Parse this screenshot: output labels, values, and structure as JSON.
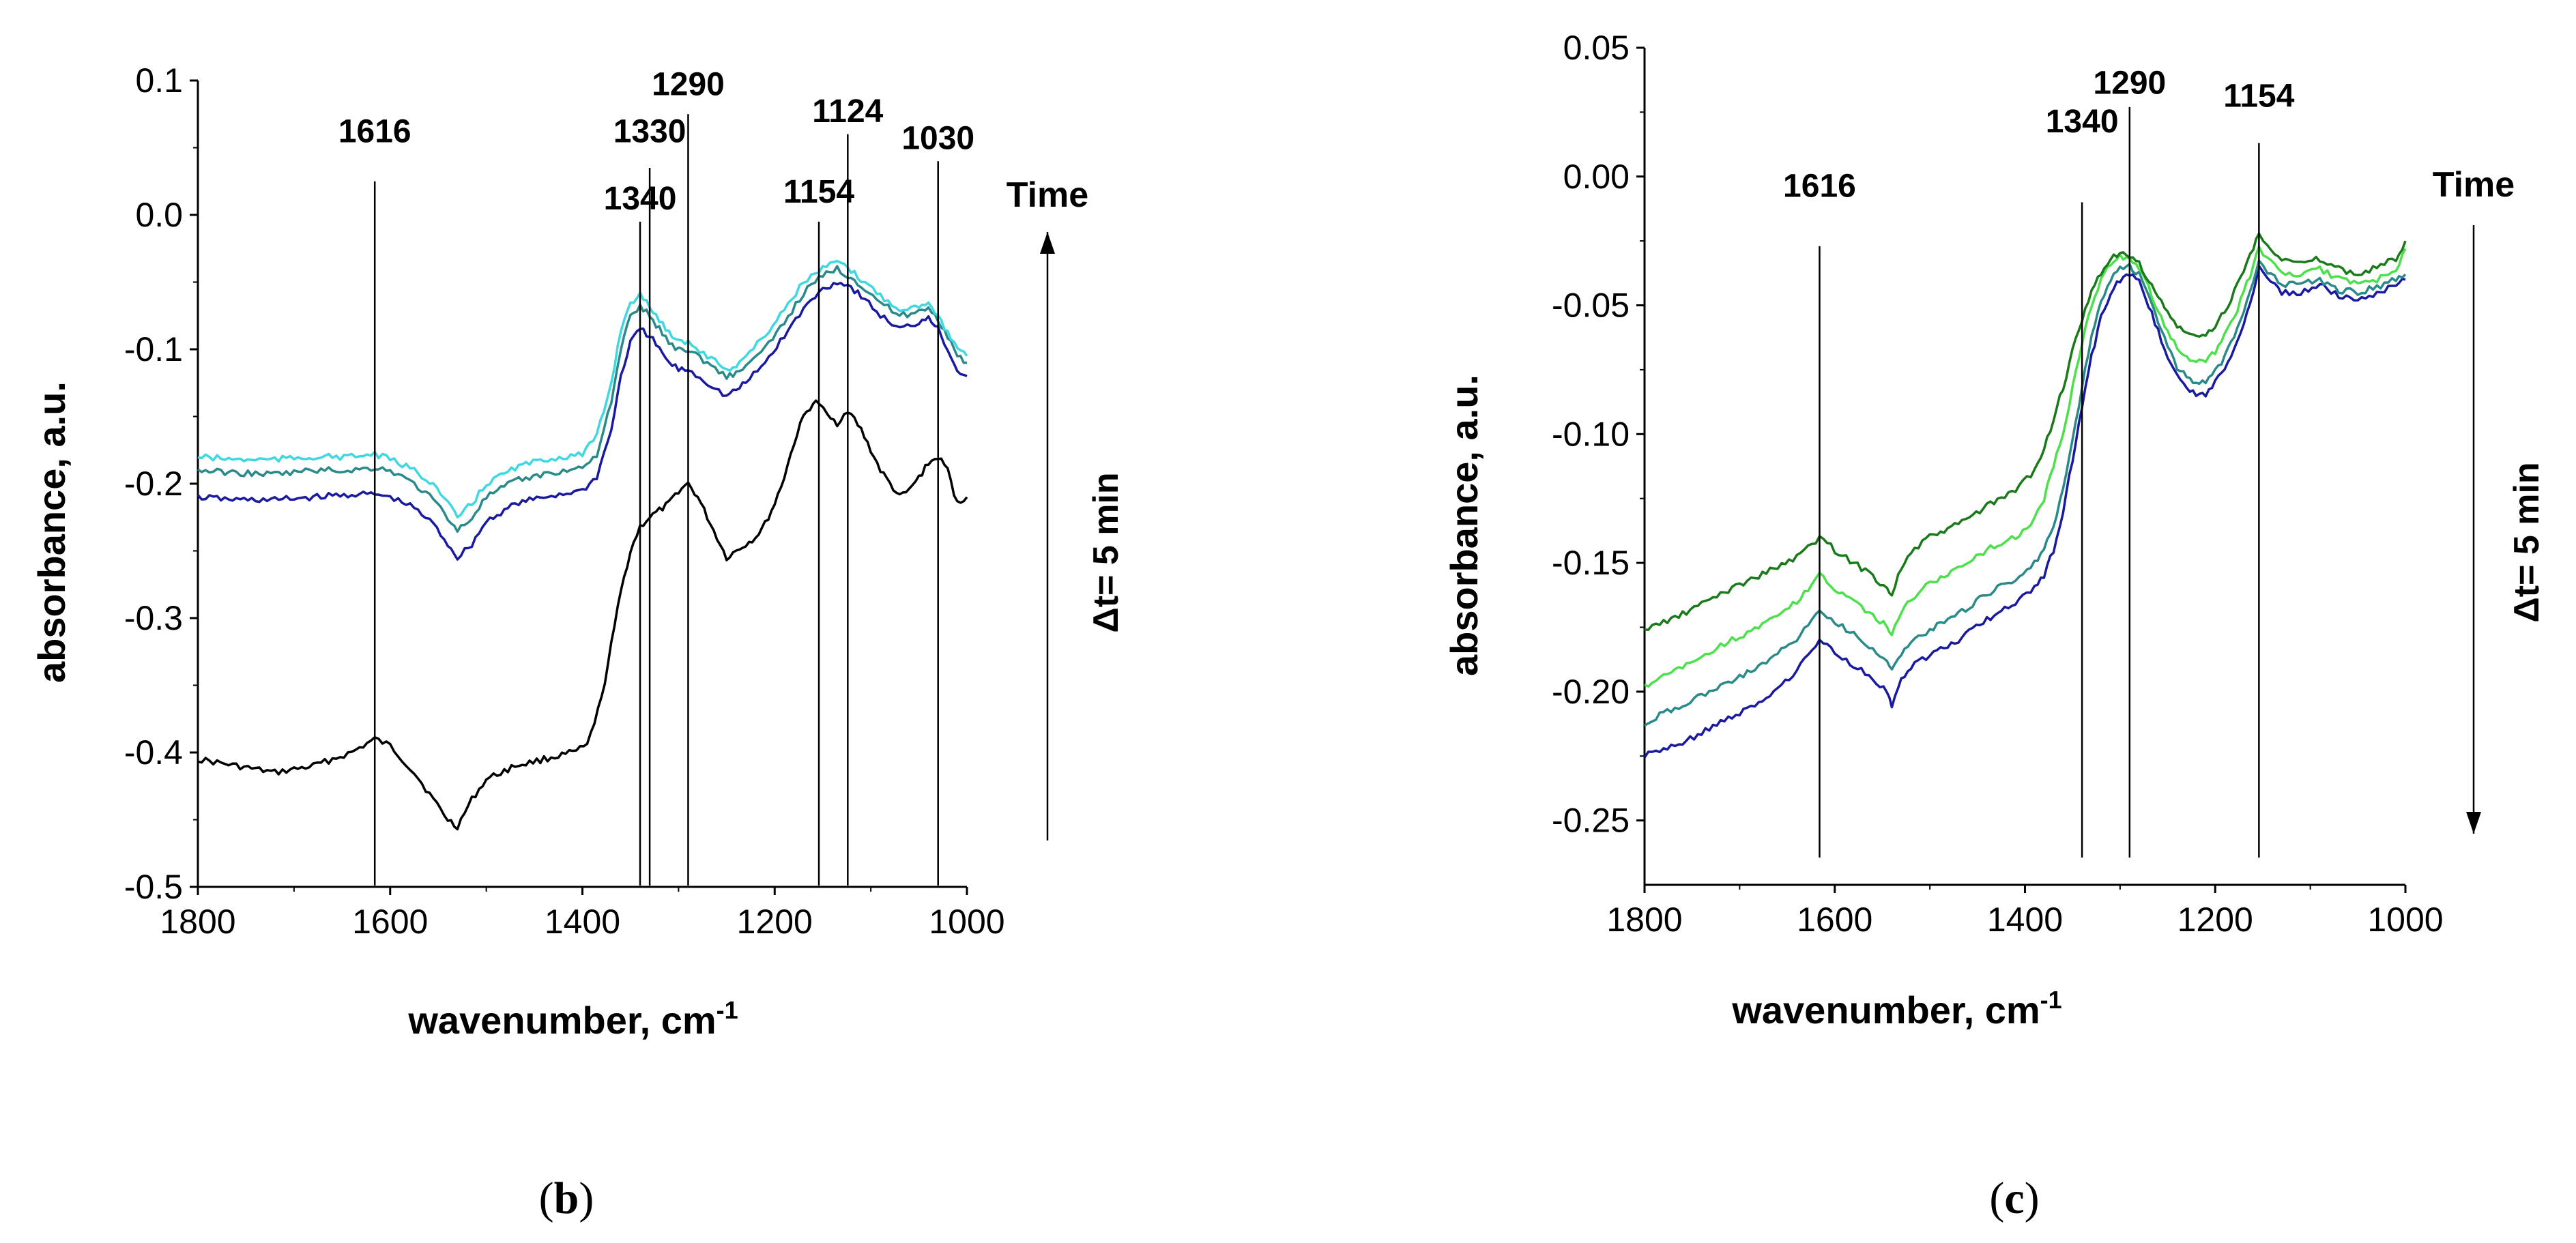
{
  "chart_data": [
    {
      "id": "b",
      "type": "line",
      "panel_label": "b",
      "xlabel": "wavenumber, cm",
      "xlabel_sup": "-1",
      "ylabel": "absorbance, a.u.",
      "xlim": [
        1800,
        1000
      ],
      "ylim": [
        -0.5,
        0.1
      ],
      "x_ticks": [
        1800,
        1600,
        1400,
        1200,
        1000
      ],
      "y_ticks": [
        0.1,
        0.0,
        -0.1,
        -0.2,
        -0.3,
        -0.4,
        -0.5
      ],
      "y_tick_labels": [
        "0.1",
        "0.0",
        "-0.1",
        "-0.2",
        "-0.3",
        "-0.4",
        "-0.5"
      ],
      "peak_lines": [
        {
          "x": 1616,
          "label": "1616",
          "y_top": 0.025,
          "label_y": 0.05
        },
        {
          "x": 1340,
          "label": "1340",
          "y_top": -0.005,
          "label_y": 0.0
        },
        {
          "x": 1330,
          "label": "1330",
          "y_top": 0.035,
          "label_y": 0.05
        },
        {
          "x": 1290,
          "label": "1290",
          "y_top": 0.075,
          "label_y": 0.085
        },
        {
          "x": 1154,
          "label": "1154",
          "y_top": -0.005,
          "label_y": 0.005
        },
        {
          "x": 1124,
          "label": "1124",
          "y_top": 0.06,
          "label_y": 0.065
        },
        {
          "x": 1030,
          "label": "1030",
          "y_top": 0.04,
          "label_y": 0.045
        }
      ],
      "arrow": {
        "label": "Time",
        "delta_label": "Δt= 5 min",
        "direction": "up"
      },
      "series": [
        {
          "name": "spectrum 1",
          "color": "#000000",
          "x": [
            1800,
            1760,
            1720,
            1680,
            1640,
            1616,
            1600,
            1575,
            1555,
            1540,
            1530,
            1515,
            1500,
            1470,
            1440,
            1410,
            1395,
            1380,
            1370,
            1360,
            1350,
            1340,
            1330,
            1320,
            1310,
            1300,
            1290,
            1280,
            1270,
            1260,
            1250,
            1240,
            1230,
            1220,
            1210,
            1200,
            1190,
            1180,
            1170,
            1160,
            1154,
            1145,
            1135,
            1124,
            1110,
            1100,
            1090,
            1080,
            1070,
            1060,
            1050,
            1040,
            1030,
            1020,
            1010,
            1000
          ],
          "y": [
            -0.405,
            -0.41,
            -0.415,
            -0.41,
            -0.4,
            -0.39,
            -0.395,
            -0.415,
            -0.435,
            -0.45,
            -0.455,
            -0.435,
            -0.42,
            -0.41,
            -0.405,
            -0.4,
            -0.395,
            -0.36,
            -0.32,
            -0.28,
            -0.25,
            -0.232,
            -0.225,
            -0.22,
            -0.215,
            -0.205,
            -0.2,
            -0.21,
            -0.225,
            -0.24,
            -0.255,
            -0.25,
            -0.245,
            -0.24,
            -0.23,
            -0.215,
            -0.195,
            -0.17,
            -0.15,
            -0.14,
            -0.14,
            -0.15,
            -0.155,
            -0.145,
            -0.16,
            -0.175,
            -0.19,
            -0.2,
            -0.21,
            -0.205,
            -0.195,
            -0.185,
            -0.18,
            -0.19,
            -0.215,
            -0.21
          ]
        },
        {
          "name": "spectrum 2",
          "color": "#1a1aa0",
          "x": [
            1800,
            1760,
            1720,
            1680,
            1640,
            1616,
            1600,
            1575,
            1555,
            1540,
            1530,
            1515,
            1500,
            1470,
            1440,
            1400,
            1385,
            1370,
            1360,
            1350,
            1340,
            1330,
            1320,
            1310,
            1300,
            1290,
            1270,
            1250,
            1240,
            1230,
            1210,
            1190,
            1170,
            1150,
            1135,
            1124,
            1110,
            1090,
            1070,
            1050,
            1040,
            1030,
            1020,
            1010,
            1000
          ],
          "y": [
            -0.21,
            -0.212,
            -0.212,
            -0.21,
            -0.208,
            -0.208,
            -0.21,
            -0.218,
            -0.23,
            -0.245,
            -0.255,
            -0.245,
            -0.228,
            -0.215,
            -0.21,
            -0.205,
            -0.195,
            -0.16,
            -0.12,
            -0.095,
            -0.085,
            -0.09,
            -0.1,
            -0.11,
            -0.115,
            -0.115,
            -0.125,
            -0.135,
            -0.13,
            -0.125,
            -0.11,
            -0.09,
            -0.07,
            -0.055,
            -0.05,
            -0.052,
            -0.06,
            -0.075,
            -0.085,
            -0.08,
            -0.075,
            -0.085,
            -0.1,
            -0.115,
            -0.12
          ]
        },
        {
          "name": "spectrum 3",
          "color": "#2a8a8a",
          "x": [
            1800,
            1760,
            1720,
            1680,
            1640,
            1616,
            1600,
            1575,
            1555,
            1540,
            1530,
            1515,
            1500,
            1470,
            1440,
            1400,
            1385,
            1370,
            1360,
            1350,
            1340,
            1330,
            1320,
            1310,
            1300,
            1290,
            1270,
            1250,
            1240,
            1230,
            1210,
            1190,
            1170,
            1150,
            1135,
            1124,
            1110,
            1090,
            1070,
            1050,
            1040,
            1030,
            1020,
            1010,
            1000
          ],
          "y": [
            -0.19,
            -0.192,
            -0.193,
            -0.19,
            -0.19,
            -0.188,
            -0.19,
            -0.2,
            -0.212,
            -0.225,
            -0.235,
            -0.225,
            -0.21,
            -0.198,
            -0.193,
            -0.188,
            -0.178,
            -0.14,
            -0.1,
            -0.075,
            -0.068,
            -0.075,
            -0.085,
            -0.095,
            -0.1,
            -0.1,
            -0.11,
            -0.12,
            -0.118,
            -0.112,
            -0.1,
            -0.08,
            -0.058,
            -0.045,
            -0.04,
            -0.045,
            -0.052,
            -0.065,
            -0.075,
            -0.072,
            -0.068,
            -0.078,
            -0.09,
            -0.105,
            -0.11
          ]
        },
        {
          "name": "spectrum 4",
          "color": "#3fd8e0",
          "x": [
            1800,
            1760,
            1720,
            1680,
            1640,
            1616,
            1600,
            1575,
            1555,
            1540,
            1530,
            1515,
            1500,
            1470,
            1440,
            1400,
            1385,
            1370,
            1360,
            1350,
            1340,
            1330,
            1320,
            1310,
            1300,
            1290,
            1270,
            1250,
            1240,
            1230,
            1210,
            1190,
            1170,
            1150,
            1135,
            1124,
            1110,
            1090,
            1070,
            1050,
            1040,
            1030,
            1020,
            1010,
            1000
          ],
          "y": [
            -0.18,
            -0.182,
            -0.182,
            -0.18,
            -0.18,
            -0.178,
            -0.182,
            -0.19,
            -0.2,
            -0.215,
            -0.225,
            -0.215,
            -0.2,
            -0.188,
            -0.182,
            -0.178,
            -0.165,
            -0.125,
            -0.085,
            -0.065,
            -0.06,
            -0.068,
            -0.078,
            -0.088,
            -0.092,
            -0.095,
            -0.105,
            -0.115,
            -0.112,
            -0.105,
            -0.09,
            -0.07,
            -0.05,
            -0.04,
            -0.035,
            -0.04,
            -0.048,
            -0.06,
            -0.07,
            -0.068,
            -0.064,
            -0.075,
            -0.088,
            -0.1,
            -0.105
          ]
        }
      ]
    },
    {
      "id": "c",
      "type": "line",
      "panel_label": "c",
      "xlabel": "wavenumber, cm",
      "xlabel_sup": "-1",
      "ylabel": "absorbance, a.u.",
      "xlim": [
        1800,
        1000
      ],
      "ylim": [
        -0.275,
        0.05
      ],
      "x_ticks": [
        1800,
        1600,
        1400,
        1200,
        1000
      ],
      "y_ticks": [
        0.05,
        0.0,
        -0.05,
        -0.1,
        -0.15,
        -0.2,
        -0.25
      ],
      "y_tick_labels": [
        "0.05",
        "0.00",
        "-0.05",
        "-0.10",
        "-0.15",
        "-0.20",
        "-0.25"
      ],
      "peak_lines": [
        {
          "x": 1616,
          "label": "1616",
          "y_top": -0.027,
          "label_y": -0.01
        },
        {
          "x": 1340,
          "label": "1340",
          "y_top": -0.01,
          "label_y": 0.015
        },
        {
          "x": 1290,
          "label": "1290",
          "y_top": 0.027,
          "label_y": 0.03
        },
        {
          "x": 1154,
          "label": "1154",
          "y_top": 0.013,
          "label_y": 0.025
        }
      ],
      "arrow": {
        "label": "Time",
        "delta_label": "Δt= 5 min",
        "direction": "down"
      },
      "series": [
        {
          "name": "spectrum 1",
          "color": "#1a1aa0",
          "x": [
            1800,
            1760,
            1720,
            1680,
            1640,
            1616,
            1600,
            1580,
            1560,
            1545,
            1540,
            1530,
            1520,
            1500,
            1470,
            1440,
            1410,
            1390,
            1380,
            1370,
            1360,
            1350,
            1340,
            1330,
            1320,
            1310,
            1300,
            1290,
            1280,
            1270,
            1260,
            1250,
            1240,
            1230,
            1220,
            1210,
            1200,
            1190,
            1180,
            1170,
            1160,
            1154,
            1145,
            1130,
            1110,
            1090,
            1070,
            1050,
            1030,
            1010,
            1000
          ],
          "y": [
            -0.225,
            -0.22,
            -0.212,
            -0.205,
            -0.192,
            -0.18,
            -0.185,
            -0.19,
            -0.195,
            -0.2,
            -0.205,
            -0.195,
            -0.19,
            -0.186,
            -0.18,
            -0.172,
            -0.165,
            -0.16,
            -0.155,
            -0.145,
            -0.13,
            -0.11,
            -0.09,
            -0.07,
            -0.055,
            -0.045,
            -0.04,
            -0.038,
            -0.04,
            -0.05,
            -0.06,
            -0.07,
            -0.078,
            -0.082,
            -0.085,
            -0.085,
            -0.08,
            -0.075,
            -0.068,
            -0.058,
            -0.045,
            -0.035,
            -0.04,
            -0.045,
            -0.045,
            -0.042,
            -0.046,
            -0.048,
            -0.045,
            -0.042,
            -0.04
          ]
        },
        {
          "name": "spectrum 2",
          "color": "#2a8a8a",
          "x": [
            1800,
            1760,
            1720,
            1680,
            1640,
            1616,
            1600,
            1580,
            1560,
            1545,
            1540,
            1530,
            1520,
            1500,
            1470,
            1440,
            1410,
            1390,
            1380,
            1370,
            1360,
            1350,
            1340,
            1330,
            1320,
            1310,
            1300,
            1290,
            1280,
            1270,
            1260,
            1250,
            1240,
            1230,
            1220,
            1210,
            1200,
            1190,
            1180,
            1170,
            1160,
            1154,
            1145,
            1130,
            1110,
            1090,
            1070,
            1050,
            1030,
            1010,
            1000
          ],
          "y": [
            -0.212,
            -0.205,
            -0.198,
            -0.19,
            -0.18,
            -0.168,
            -0.173,
            -0.178,
            -0.183,
            -0.188,
            -0.192,
            -0.185,
            -0.18,
            -0.176,
            -0.17,
            -0.162,
            -0.156,
            -0.15,
            -0.145,
            -0.135,
            -0.122,
            -0.102,
            -0.082,
            -0.062,
            -0.048,
            -0.04,
            -0.036,
            -0.035,
            -0.038,
            -0.046,
            -0.056,
            -0.066,
            -0.074,
            -0.078,
            -0.08,
            -0.08,
            -0.076,
            -0.07,
            -0.062,
            -0.052,
            -0.04,
            -0.032,
            -0.037,
            -0.042,
            -0.042,
            -0.04,
            -0.044,
            -0.045,
            -0.043,
            -0.04,
            -0.038
          ]
        },
        {
          "name": "spectrum 3",
          "color": "#4ce04c",
          "x": [
            1800,
            1760,
            1720,
            1680,
            1640,
            1616,
            1600,
            1580,
            1560,
            1545,
            1540,
            1530,
            1520,
            1500,
            1470,
            1440,
            1410,
            1390,
            1380,
            1370,
            1360,
            1350,
            1340,
            1330,
            1320,
            1310,
            1300,
            1290,
            1280,
            1270,
            1260,
            1250,
            1240,
            1230,
            1220,
            1210,
            1200,
            1190,
            1180,
            1170,
            1160,
            1154,
            1145,
            1130,
            1110,
            1090,
            1070,
            1050,
            1030,
            1010,
            1000
          ],
          "y": [
            -0.198,
            -0.19,
            -0.182,
            -0.175,
            -0.165,
            -0.155,
            -0.16,
            -0.165,
            -0.17,
            -0.175,
            -0.178,
            -0.17,
            -0.164,
            -0.158,
            -0.152,
            -0.145,
            -0.14,
            -0.133,
            -0.125,
            -0.112,
            -0.1,
            -0.082,
            -0.065,
            -0.05,
            -0.04,
            -0.034,
            -0.031,
            -0.032,
            -0.036,
            -0.043,
            -0.052,
            -0.06,
            -0.066,
            -0.07,
            -0.072,
            -0.072,
            -0.068,
            -0.062,
            -0.055,
            -0.045,
            -0.035,
            -0.028,
            -0.032,
            -0.038,
            -0.038,
            -0.036,
            -0.04,
            -0.042,
            -0.04,
            -0.036,
            -0.028
          ]
        },
        {
          "name": "spectrum 4",
          "color": "#1a7a1a",
          "x": [
            1800,
            1760,
            1720,
            1680,
            1640,
            1616,
            1600,
            1580,
            1560,
            1545,
            1540,
            1530,
            1520,
            1500,
            1470,
            1440,
            1410,
            1390,
            1380,
            1370,
            1360,
            1350,
            1340,
            1330,
            1320,
            1310,
            1300,
            1290,
            1280,
            1270,
            1260,
            1250,
            1240,
            1230,
            1220,
            1210,
            1200,
            1190,
            1180,
            1170,
            1160,
            1154,
            1145,
            1130,
            1110,
            1090,
            1070,
            1050,
            1030,
            1010,
            1000
          ],
          "y": [
            -0.176,
            -0.17,
            -0.162,
            -0.155,
            -0.148,
            -0.14,
            -0.145,
            -0.15,
            -0.155,
            -0.16,
            -0.162,
            -0.152,
            -0.146,
            -0.14,
            -0.135,
            -0.128,
            -0.122,
            -0.114,
            -0.106,
            -0.094,
            -0.082,
            -0.068,
            -0.056,
            -0.045,
            -0.037,
            -0.032,
            -0.03,
            -0.031,
            -0.034,
            -0.04,
            -0.047,
            -0.053,
            -0.058,
            -0.061,
            -0.062,
            -0.062,
            -0.058,
            -0.052,
            -0.045,
            -0.036,
            -0.028,
            -0.022,
            -0.026,
            -0.032,
            -0.034,
            -0.032,
            -0.036,
            -0.038,
            -0.035,
            -0.032,
            -0.025
          ]
        }
      ]
    }
  ]
}
